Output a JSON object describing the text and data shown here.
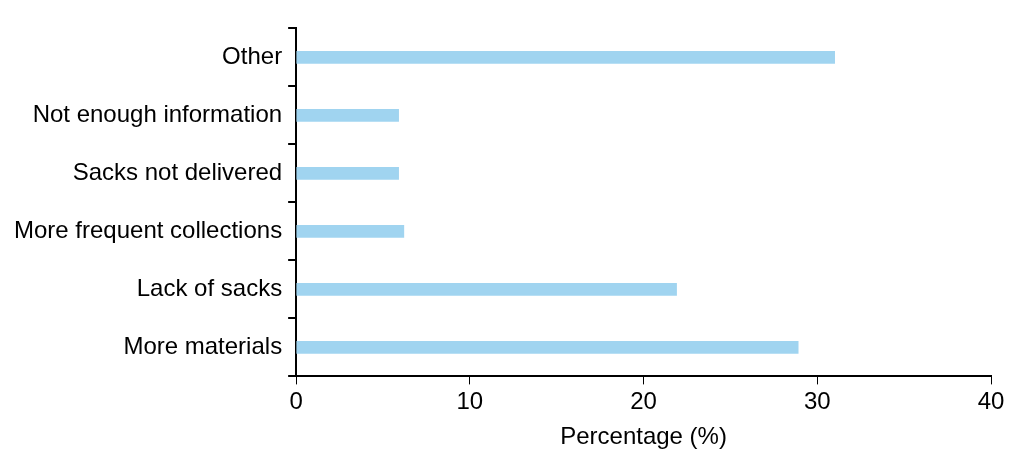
{
  "chart_data": {
    "type": "bar",
    "orientation": "horizontal",
    "xlabel": "Percentage (%)",
    "categories": [
      "Other",
      "Not enough information",
      "Sacks not delivered",
      "More frequent collections",
      "Lack of sacks",
      "More materials"
    ],
    "values": [
      31,
      5.9,
      5.9,
      6.2,
      21.9,
      28.9
    ],
    "color": "#a0d4f0",
    "xlim": [
      0,
      40
    ],
    "xticks": [
      0,
      10,
      20,
      30,
      40
    ],
    "grid": false,
    "legend": false
  }
}
